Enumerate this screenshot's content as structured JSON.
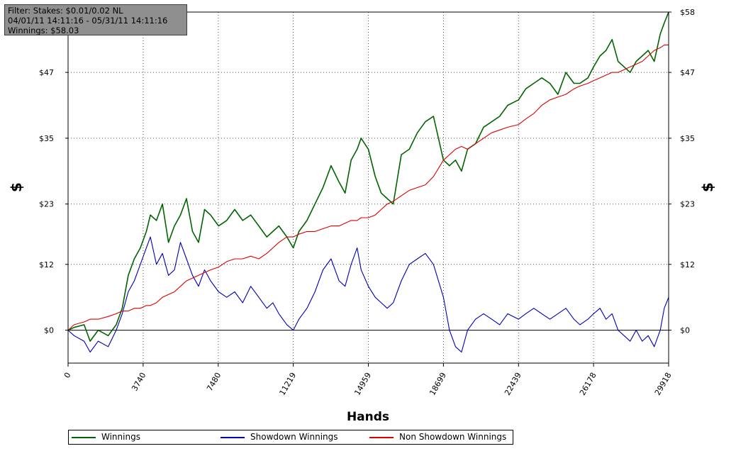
{
  "filter_box": {
    "line1": "Filter: Stakes: $0.01/0.02 NL",
    "line2": "04/01/11 14:11:16 - 05/31/11 14:11:16",
    "line3": "Winnings: $58.03"
  },
  "chart_data": {
    "type": "line",
    "xlabel": "Hands",
    "ylabel_left": "$",
    "ylabel_right": "$",
    "x_ticks": [
      "0",
      "3740",
      "7480",
      "11219",
      "14959",
      "18699",
      "22439",
      "26178",
      "29918"
    ],
    "y_ticks": [
      "$0",
      "$12",
      "$23",
      "$35",
      "$47",
      "$58"
    ],
    "xlim": [
      0,
      29918
    ],
    "ylim": [
      -6,
      58
    ],
    "grid": true,
    "legend_position": "bottom",
    "series": [
      {
        "name": "Winnings",
        "color": "#006400",
        "x": [
          0,
          300,
          800,
          1100,
          1500,
          2000,
          2400,
          2700,
          3000,
          3300,
          3600,
          3900,
          4100,
          4400,
          4700,
          5000,
          5300,
          5600,
          5900,
          6200,
          6500,
          6800,
          7100,
          7500,
          7900,
          8300,
          8700,
          9100,
          9500,
          9900,
          10200,
          10500,
          10900,
          11219,
          11500,
          11900,
          12300,
          12700,
          13100,
          13500,
          13800,
          14100,
          14400,
          14600,
          14959,
          15300,
          15600,
          15900,
          16200,
          16600,
          17000,
          17400,
          17800,
          18200,
          18699,
          19000,
          19300,
          19600,
          19900,
          20300,
          20700,
          21100,
          21500,
          21900,
          22439,
          22800,
          23200,
          23600,
          24000,
          24400,
          24800,
          25200,
          25500,
          25900,
          26178,
          26500,
          26800,
          27100,
          27400,
          27700,
          28000,
          28300,
          28600,
          28900,
          29200,
          29500,
          29700,
          29918
        ],
        "y": [
          0,
          0.5,
          1,
          -2,
          0,
          -1,
          1,
          4,
          10,
          13,
          15,
          18,
          21,
          20,
          23,
          16,
          19,
          21,
          24,
          18,
          16,
          22,
          21,
          19,
          20,
          22,
          20,
          21,
          19,
          17,
          18,
          19,
          17,
          15,
          18,
          20,
          23,
          26,
          30,
          27,
          25,
          31,
          33,
          35,
          33,
          28,
          25,
          24,
          23,
          32,
          33,
          36,
          38,
          39,
          31,
          30,
          31,
          29,
          33,
          34,
          37,
          38,
          39,
          41,
          42,
          44,
          45,
          46,
          45,
          43,
          47,
          45,
          45,
          46,
          48,
          50,
          51,
          53,
          49,
          48,
          47,
          49,
          50,
          51,
          49,
          54,
          56,
          58
        ]
      },
      {
        "name": "Showdown Winnings",
        "color": "#0000b4",
        "x": [
          0,
          300,
          800,
          1100,
          1500,
          2000,
          2400,
          2700,
          3000,
          3300,
          3600,
          3900,
          4100,
          4400,
          4700,
          5000,
          5300,
          5600,
          5900,
          6200,
          6500,
          6800,
          7100,
          7500,
          7900,
          8300,
          8700,
          9100,
          9500,
          9900,
          10200,
          10500,
          10900,
          11219,
          11500,
          11900,
          12300,
          12700,
          13100,
          13500,
          13800,
          14100,
          14400,
          14600,
          14959,
          15300,
          15600,
          15900,
          16200,
          16600,
          17000,
          17400,
          17800,
          18200,
          18699,
          19000,
          19300,
          19600,
          19900,
          20300,
          20700,
          21100,
          21500,
          21900,
          22439,
          22800,
          23200,
          23600,
          24000,
          24400,
          24800,
          25200,
          25500,
          25900,
          26178,
          26500,
          26800,
          27100,
          27400,
          27700,
          28000,
          28300,
          28600,
          28900,
          29200,
          29500,
          29700,
          29918
        ],
        "y": [
          0,
          -1,
          -2,
          -4,
          -2,
          -3,
          0,
          3,
          7,
          9,
          12,
          15,
          17,
          12,
          14,
          10,
          11,
          16,
          13,
          10,
          8,
          11,
          9,
          7,
          6,
          7,
          5,
          8,
          6,
          4,
          5,
          3,
          1,
          0,
          2,
          4,
          7,
          11,
          13,
          9,
          8,
          12,
          15,
          11,
          8,
          6,
          5,
          4,
          5,
          9,
          12,
          13,
          14,
          12,
          6,
          0,
          -3,
          -4,
          0,
          2,
          3,
          2,
          1,
          3,
          2,
          3,
          4,
          3,
          2,
          3,
          4,
          2,
          1,
          2,
          3,
          4,
          2,
          3,
          0,
          -1,
          -2,
          0,
          -2,
          -1,
          -3,
          0,
          4,
          6
        ]
      },
      {
        "name": "Non Showdown Winnings",
        "color": "#dc0000",
        "x": [
          0,
          300,
          800,
          1100,
          1500,
          2000,
          2400,
          2700,
          3000,
          3300,
          3600,
          3900,
          4100,
          4400,
          4700,
          5000,
          5300,
          5600,
          5900,
          6200,
          6500,
          6800,
          7100,
          7500,
          7900,
          8300,
          8700,
          9100,
          9500,
          9900,
          10200,
          10500,
          10900,
          11219,
          11500,
          11900,
          12300,
          12700,
          13100,
          13500,
          13800,
          14100,
          14400,
          14600,
          14959,
          15300,
          15600,
          15900,
          16200,
          16600,
          17000,
          17400,
          17800,
          18200,
          18699,
          19000,
          19300,
          19600,
          19900,
          20300,
          20700,
          21100,
          21500,
          21900,
          22439,
          22800,
          23200,
          23600,
          24000,
          24400,
          24800,
          25200,
          25500,
          25900,
          26178,
          26500,
          26800,
          27100,
          27400,
          27700,
          28000,
          28300,
          28600,
          28900,
          29200,
          29500,
          29700,
          29918
        ],
        "y": [
          0,
          1,
          1.5,
          2,
          2,
          2.5,
          3,
          3.5,
          3.5,
          4,
          4,
          4.5,
          4.5,
          5,
          6,
          6.5,
          7,
          8,
          9,
          9.5,
          10,
          10.5,
          11,
          11.5,
          12.5,
          13,
          13,
          13.5,
          13,
          14,
          15,
          16,
          17,
          17,
          17.5,
          18,
          18,
          18.5,
          19,
          19,
          19.5,
          20,
          20,
          20.5,
          20.5,
          21,
          22,
          23,
          23.5,
          24.5,
          25.5,
          26,
          26.5,
          28,
          31,
          32,
          33,
          33.5,
          33,
          34,
          35,
          36,
          36.5,
          37,
          37.5,
          38.5,
          39.5,
          41,
          42,
          42.5,
          43,
          44,
          44.5,
          45,
          45.5,
          46,
          46.5,
          47,
          47,
          47.5,
          48,
          48.5,
          49,
          50,
          51,
          51.5,
          52,
          52
        ]
      }
    ]
  },
  "legend": {
    "items": [
      {
        "label": "Winnings",
        "color": "#006400"
      },
      {
        "label": "Showdown Winnings",
        "color": "#0000b4"
      },
      {
        "label": "Non Showdown Winnings",
        "color": "#dc0000"
      }
    ]
  }
}
